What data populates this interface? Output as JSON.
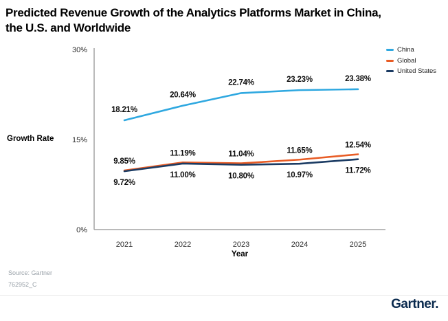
{
  "header": {
    "title_line1": "Predicted Revenue Growth of the Analytics Platforms Market in China,",
    "title_line2": "the U.S. and Worldwide"
  },
  "chart_data": {
    "type": "line",
    "title": "Predicted Revenue Growth of the Analytics Platforms Market in China, the U.S. and Worldwide",
    "xlabel": "Year",
    "ylabel": "Growth Rate",
    "categories": [
      "2021",
      "2022",
      "2023",
      "2024",
      "2025"
    ],
    "yticks": [
      0,
      15,
      30
    ],
    "ylim": [
      0,
      30
    ],
    "unit": "%",
    "grid": false,
    "legend_position": "top-right",
    "series": [
      {
        "name": "China",
        "color": "#2FA8E0",
        "values": [
          18.21,
          20.64,
          22.74,
          23.23,
          23.38
        ]
      },
      {
        "name": "Global",
        "color": "#E85C25",
        "values": [
          9.85,
          11.19,
          11.04,
          11.65,
          12.54
        ]
      },
      {
        "name": "United States",
        "color": "#1B3B63",
        "values": [
          9.72,
          11.0,
          10.8,
          10.97,
          11.72
        ]
      }
    ]
  },
  "footer": {
    "source_line1": "Source: Gartner",
    "source_line2": "762952_C",
    "logo_text": "Gartner."
  }
}
